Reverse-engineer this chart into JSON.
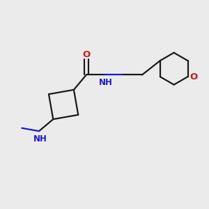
{
  "background_color": "#ebebeb",
  "bond_color": "#1a1a1a",
  "N_color": "#1a1acc",
  "O_color": "#cc1a1a",
  "line_width": 1.6,
  "figsize": [
    3.0,
    3.0
  ],
  "dpi": 100,
  "xlim": [
    0,
    10
  ],
  "ylim": [
    0,
    10
  ],
  "font_size": 8.5
}
